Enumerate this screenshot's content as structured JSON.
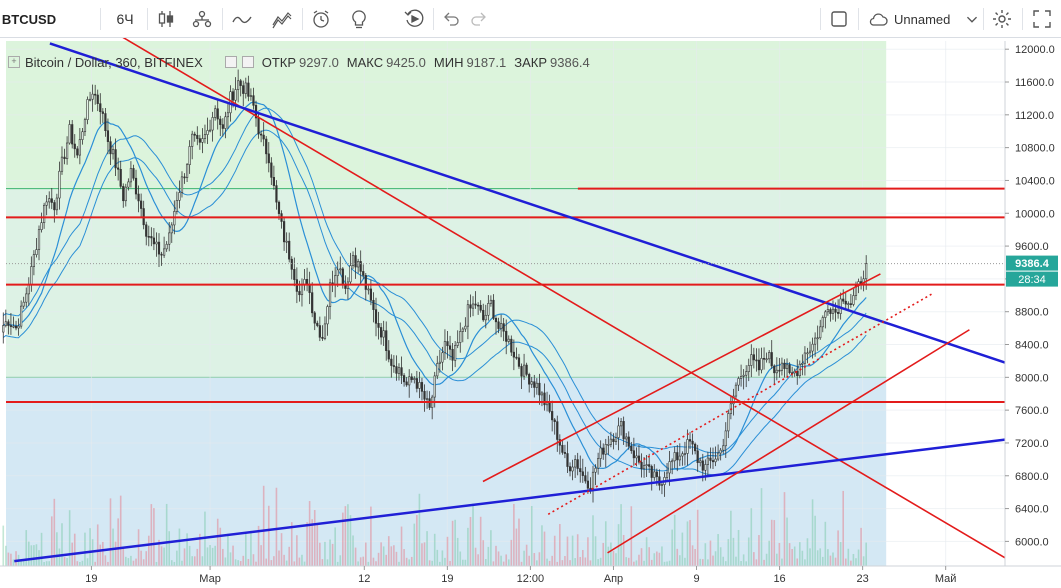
{
  "toolbar": {
    "symbol": "BTCUSD",
    "interval": "6Ч",
    "layout_name": "Unnamed",
    "icons": [
      "candles-icon",
      "indicators-icon",
      "compare-icon",
      "templates-icon",
      "alert-icon",
      "idea-icon",
      "replay-icon",
      "undo-icon",
      "redo-icon",
      "square-icon",
      "cloud-icon",
      "chevron-down-icon",
      "gear-icon",
      "fullscreen-icon"
    ]
  },
  "legend": {
    "title": "Bitcoin / Dollar, 360, BITFINEX",
    "open_label": "ОТКР",
    "open": "9297.0",
    "high_label": "МАКС",
    "high": "9425.0",
    "low_label": "МИН",
    "low": "9187.1",
    "close_label": "ЗАКР",
    "close": "9386.4"
  },
  "price_badges": {
    "last_price": "9386.4",
    "countdown": "28:34",
    "last_color": "#26a69a"
  },
  "chart_data": {
    "type": "candlestick",
    "y_ticks": [
      6000,
      6400,
      6800,
      7200,
      7600,
      8000,
      8400,
      8800,
      9200,
      9600,
      10000,
      10400,
      10800,
      11200,
      11600,
      12000
    ],
    "y_tick_labels": [
      "6000.0",
      "6400.0",
      "6800.0",
      "7200.0",
      "7600.0",
      "8000.0",
      "8400.0",
      "8800.0",
      "9200.0",
      "9600.0",
      "10000.0",
      "10400.0",
      "10800.0",
      "11200.0",
      "11600.0",
      "12000.0"
    ],
    "ylim": [
      5700,
      12100
    ],
    "x_tick_labels": [
      "19",
      "Мар",
      "12",
      "19",
      "12:00",
      "Апр",
      "9",
      "16",
      "23",
      "Май"
    ],
    "x_ticks_days": [
      0,
      10,
      23,
      30,
      37,
      44,
      51,
      58,
      65,
      72
    ],
    "x_range_days": [
      -7.2,
      77
    ],
    "last_bar_day": 65.3,
    "candles_close": [
      8700,
      8600,
      8900,
      9300,
      9800,
      10200,
      10100,
      10600,
      11000,
      10700,
      11200,
      11500,
      11300,
      10900,
      10600,
      10200,
      10500,
      10200,
      9800,
      9600,
      9500,
      9700,
      10200,
      10500,
      10900,
      10800,
      11000,
      11300,
      11000,
      11400,
      11600,
      11500,
      11300,
      10900,
      10700,
      10100,
      9700,
      9400,
      9000,
      9200,
      8700,
      8500,
      9100,
      9400,
      9100,
      9500,
      9300,
      9000,
      8700,
      8500,
      8200,
      8100,
      7900,
      8000,
      7800,
      7600,
      8100,
      8400,
      8200,
      8500,
      8800,
      8900,
      8700,
      8900,
      8600,
      8500,
      8300,
      8100,
      8000,
      7900,
      7700,
      7500,
      7200,
      6900,
      7000,
      6800,
      6700,
      7000,
      7200,
      7300,
      7400,
      7200,
      7000,
      6900,
      6800,
      6700,
      6900,
      7000,
      7100,
      7200,
      7000,
      6900,
      7000,
      7100,
      7500,
      7900,
      8100,
      8200,
      8100,
      8300,
      8100,
      8200,
      8000,
      8100,
      8300,
      8400,
      8600,
      8900,
      8800,
      9000,
      8900,
      9100,
      9386
    ],
    "volume_max": 1.0,
    "horizontal_levels": [
      10300,
      9950,
      9130,
      7700
    ],
    "level_color": "#e31b1b",
    "trend_color_blue": "#1f1fd6",
    "zone_upper_color": "#d6f2d6",
    "zone_lower_color": "#cfe5f3"
  }
}
